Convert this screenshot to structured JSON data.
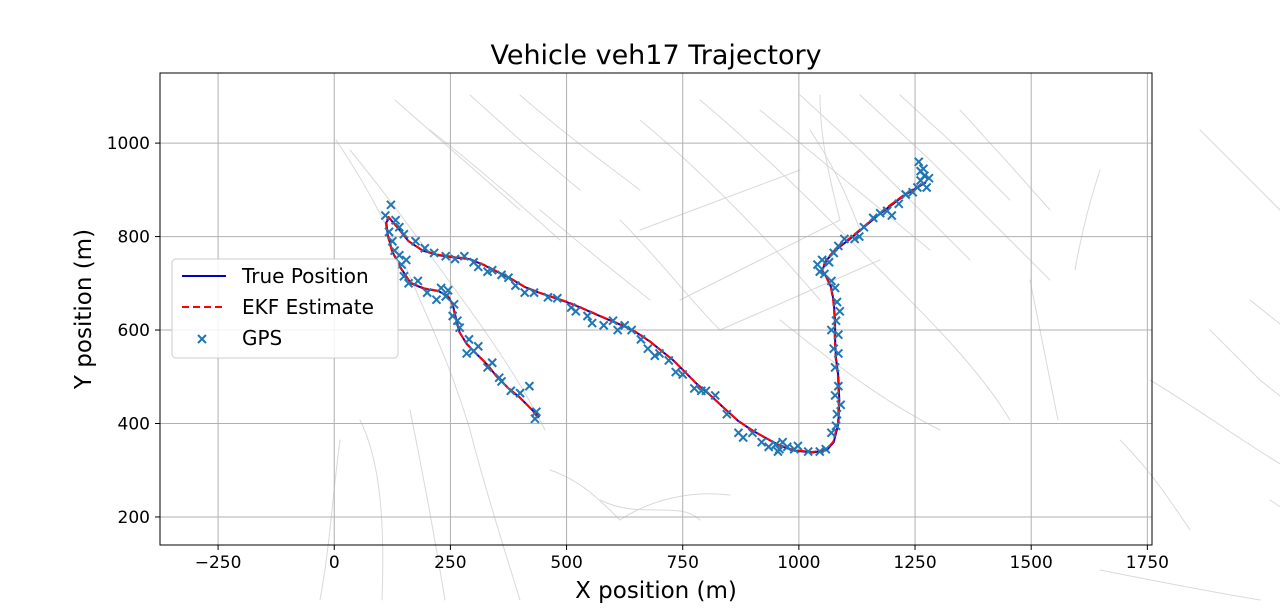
{
  "chart_data": {
    "type": "line",
    "title": "Vehicle veh17 Trajectory",
    "xlabel": "X position (m)",
    "ylabel": "Y position (m)",
    "xlim": [
      -375,
      1760
    ],
    "ylim": [
      140,
      1150
    ],
    "xticks": [
      -250,
      0,
      250,
      500,
      750,
      1000,
      1250,
      1500,
      1750
    ],
    "xtick_labels": [
      "−250",
      "0",
      "250",
      "500",
      "750",
      "1000",
      "1250",
      "1500",
      "1750"
    ],
    "yticks": [
      200,
      400,
      600,
      800,
      1000
    ],
    "ytick_labels": [
      "200",
      "400",
      "600",
      "800",
      "1000"
    ],
    "grid": true,
    "legend_position": "center-left",
    "series": [
      {
        "name": "True Position",
        "kind": "line",
        "color": "#0000cc",
        "style": "solid",
        "points": [
          [
            440,
            415
          ],
          [
            425,
            430
          ],
          [
            400,
            455
          ],
          [
            375,
            475
          ],
          [
            350,
            500
          ],
          [
            330,
            525
          ],
          [
            305,
            550
          ],
          [
            285,
            570
          ],
          [
            270,
            595
          ],
          [
            262,
            625
          ],
          [
            255,
            655
          ],
          [
            245,
            672
          ],
          [
            225,
            683
          ],
          [
            195,
            688
          ],
          [
            165,
            700
          ],
          [
            145,
            730
          ],
          [
            125,
            768
          ],
          [
            115,
            805
          ],
          [
            112,
            830
          ],
          [
            118,
            840
          ],
          [
            140,
            815
          ],
          [
            160,
            790
          ],
          [
            190,
            770
          ],
          [
            225,
            760
          ],
          [
            260,
            755
          ],
          [
            290,
            752
          ],
          [
            320,
            740
          ],
          [
            350,
            725
          ],
          [
            380,
            710
          ],
          [
            410,
            692
          ],
          [
            440,
            680
          ],
          [
            470,
            670
          ],
          [
            500,
            660
          ],
          [
            530,
            648
          ],
          [
            560,
            635
          ],
          [
            590,
            622
          ],
          [
            620,
            610
          ],
          [
            650,
            595
          ],
          [
            680,
            575
          ],
          [
            705,
            555
          ],
          [
            730,
            535
          ],
          [
            755,
            510
          ],
          [
            780,
            485
          ],
          [
            810,
            460
          ],
          [
            840,
            432
          ],
          [
            870,
            405
          ],
          [
            900,
            385
          ],
          [
            930,
            368
          ],
          [
            960,
            352
          ],
          [
            990,
            342
          ],
          [
            1030,
            338
          ],
          [
            1060,
            343
          ],
          [
            1075,
            360
          ],
          [
            1085,
            400
          ],
          [
            1087,
            450
          ],
          [
            1085,
            500
          ],
          [
            1080,
            540
          ],
          [
            1078,
            580
          ],
          [
            1078,
            620
          ],
          [
            1075,
            660
          ],
          [
            1070,
            690
          ],
          [
            1060,
            712
          ],
          [
            1050,
            728
          ],
          [
            1060,
            750
          ],
          [
            1080,
            772
          ],
          [
            1110,
            795
          ],
          [
            1140,
            820
          ],
          [
            1170,
            845
          ],
          [
            1200,
            868
          ],
          [
            1230,
            890
          ],
          [
            1255,
            905
          ],
          [
            1272,
            915
          ]
        ]
      },
      {
        "name": "EKF Estimate",
        "kind": "line",
        "color": "#ff0000",
        "style": "dashed",
        "points": [
          [
            438,
            413
          ],
          [
            423,
            432
          ],
          [
            399,
            456
          ],
          [
            374,
            477
          ],
          [
            349,
            501
          ],
          [
            329,
            527
          ],
          [
            304,
            551
          ],
          [
            284,
            572
          ],
          [
            269,
            596
          ],
          [
            261,
            626
          ],
          [
            254,
            656
          ],
          [
            244,
            673
          ],
          [
            224,
            684
          ],
          [
            194,
            689
          ],
          [
            164,
            701
          ],
          [
            144,
            731
          ],
          [
            124,
            769
          ],
          [
            114,
            806
          ],
          [
            111,
            831
          ],
          [
            117,
            842
          ],
          [
            139,
            816
          ],
          [
            159,
            791
          ],
          [
            189,
            771
          ],
          [
            224,
            761
          ],
          [
            259,
            756
          ],
          [
            289,
            753
          ],
          [
            319,
            741
          ],
          [
            349,
            726
          ],
          [
            379,
            711
          ],
          [
            409,
            693
          ],
          [
            439,
            681
          ],
          [
            469,
            671
          ],
          [
            499,
            661
          ],
          [
            529,
            649
          ],
          [
            559,
            636
          ],
          [
            589,
            623
          ],
          [
            619,
            611
          ],
          [
            649,
            596
          ],
          [
            679,
            576
          ],
          [
            704,
            556
          ],
          [
            729,
            536
          ],
          [
            754,
            511
          ],
          [
            779,
            486
          ],
          [
            809,
            461
          ],
          [
            839,
            433
          ],
          [
            869,
            406
          ],
          [
            899,
            386
          ],
          [
            929,
            369
          ],
          [
            959,
            353
          ],
          [
            989,
            343
          ],
          [
            1029,
            339
          ],
          [
            1059,
            344
          ],
          [
            1074,
            361
          ],
          [
            1084,
            401
          ],
          [
            1086,
            451
          ],
          [
            1084,
            501
          ],
          [
            1079,
            541
          ],
          [
            1077,
            581
          ],
          [
            1077,
            621
          ],
          [
            1074,
            661
          ],
          [
            1069,
            691
          ],
          [
            1059,
            713
          ],
          [
            1049,
            729
          ],
          [
            1059,
            751
          ],
          [
            1079,
            773
          ],
          [
            1109,
            796
          ],
          [
            1139,
            821
          ],
          [
            1169,
            846
          ],
          [
            1199,
            869
          ],
          [
            1229,
            891
          ],
          [
            1254,
            906
          ],
          [
            1270,
            914
          ]
        ]
      },
      {
        "name": "GPS",
        "kind": "scatter",
        "color": "#1f77b4",
        "marker": "x",
        "points": [
          [
            432,
            410
          ],
          [
            435,
            425
          ],
          [
            420,
            480
          ],
          [
            400,
            465
          ],
          [
            380,
            470
          ],
          [
            360,
            490
          ],
          [
            355,
            498
          ],
          [
            340,
            530
          ],
          [
            330,
            520
          ],
          [
            310,
            565
          ],
          [
            300,
            555
          ],
          [
            285,
            550
          ],
          [
            290,
            580
          ],
          [
            270,
            605
          ],
          [
            265,
            620
          ],
          [
            255,
            630
          ],
          [
            258,
            655
          ],
          [
            240,
            672
          ],
          [
            245,
            685
          ],
          [
            230,
            690
          ],
          [
            220,
            665
          ],
          [
            200,
            680
          ],
          [
            180,
            705
          ],
          [
            160,
            700
          ],
          [
            150,
            715
          ],
          [
            145,
            740
          ],
          [
            155,
            750
          ],
          [
            140,
            760
          ],
          [
            130,
            770
          ],
          [
            125,
            790
          ],
          [
            118,
            810
          ],
          [
            110,
            845
          ],
          [
            122,
            868
          ],
          [
            132,
            835
          ],
          [
            140,
            820
          ],
          [
            150,
            805
          ],
          [
            175,
            790
          ],
          [
            195,
            775
          ],
          [
            215,
            765
          ],
          [
            240,
            758
          ],
          [
            260,
            752
          ],
          [
            280,
            758
          ],
          [
            300,
            745
          ],
          [
            310,
            735
          ],
          [
            330,
            725
          ],
          [
            340,
            728
          ],
          [
            360,
            718
          ],
          [
            375,
            712
          ],
          [
            390,
            695
          ],
          [
            410,
            680
          ],
          [
            430,
            680
          ],
          [
            460,
            670
          ],
          [
            480,
            668
          ],
          [
            510,
            648
          ],
          [
            520,
            640
          ],
          [
            545,
            630
          ],
          [
            555,
            615
          ],
          [
            580,
            610
          ],
          [
            600,
            620
          ],
          [
            610,
            600
          ],
          [
            625,
            610
          ],
          [
            640,
            600
          ],
          [
            660,
            580
          ],
          [
            675,
            560
          ],
          [
            690,
            545
          ],
          [
            700,
            550
          ],
          [
            720,
            535
          ],
          [
            735,
            510
          ],
          [
            750,
            505
          ],
          [
            775,
            475
          ],
          [
            790,
            470
          ],
          [
            800,
            470
          ],
          [
            820,
            460
          ],
          [
            845,
            420
          ],
          [
            870,
            380
          ],
          [
            880,
            370
          ],
          [
            900,
            380
          ],
          [
            920,
            360
          ],
          [
            935,
            350
          ],
          [
            950,
            355
          ],
          [
            955,
            340
          ],
          [
            958,
            345
          ],
          [
            965,
            360
          ],
          [
            975,
            350
          ],
          [
            990,
            345
          ],
          [
            998,
            352
          ],
          [
            1020,
            340
          ],
          [
            1045,
            340
          ],
          [
            1058,
            345
          ],
          [
            1070,
            380
          ],
          [
            1080,
            395
          ],
          [
            1082,
            420
          ],
          [
            1078,
            460
          ],
          [
            1090,
            440
          ],
          [
            1085,
            480
          ],
          [
            1078,
            520
          ],
          [
            1085,
            550
          ],
          [
            1075,
            560
          ],
          [
            1085,
            590
          ],
          [
            1070,
            600
          ],
          [
            1080,
            620
          ],
          [
            1088,
            640
          ],
          [
            1082,
            660
          ],
          [
            1078,
            690
          ],
          [
            1070,
            705
          ],
          [
            1055,
            720
          ],
          [
            1045,
            725
          ],
          [
            1040,
            740
          ],
          [
            1050,
            750
          ],
          [
            1065,
            745
          ],
          [
            1075,
            765
          ],
          [
            1085,
            780
          ],
          [
            1098,
            795
          ],
          [
            1120,
            795
          ],
          [
            1130,
            800
          ],
          [
            1140,
            820
          ],
          [
            1160,
            840
          ],
          [
            1175,
            850
          ],
          [
            1190,
            855
          ],
          [
            1200,
            845
          ],
          [
            1215,
            870
          ],
          [
            1230,
            890
          ],
          [
            1245,
            895
          ],
          [
            1255,
            905
          ],
          [
            1262,
            920
          ],
          [
            1270,
            930
          ],
          [
            1275,
            905
          ],
          [
            1258,
            960
          ],
          [
            1262,
            940
          ],
          [
            1280,
            925
          ],
          [
            1268,
            945
          ]
        ]
      }
    ]
  }
}
